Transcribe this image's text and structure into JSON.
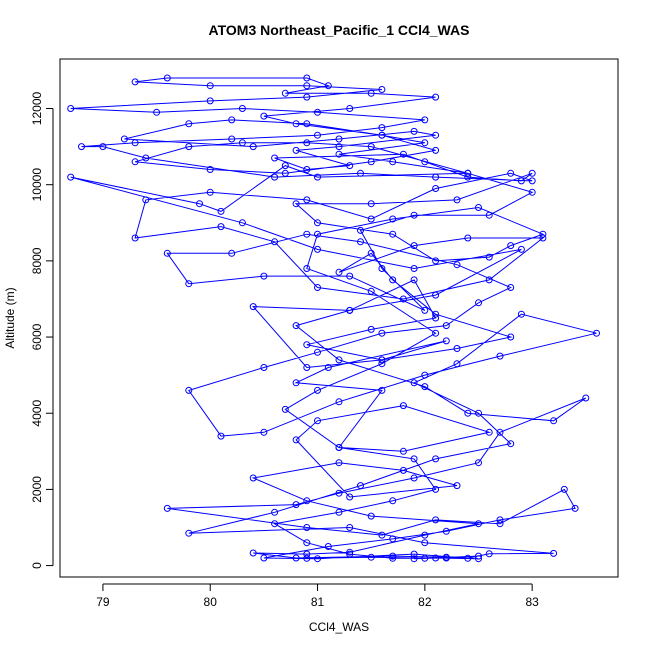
{
  "chart_data": {
    "type": "line",
    "title": "ATOM3 Northeast_Pacific_1 CCl4_WAS",
    "xlabel": "CCl4_WAS",
    "ylabel": "Altitude (m)",
    "xlim": [
      78.6,
      83.8
    ],
    "ylim": [
      -300,
      13300
    ],
    "xticks": [
      79,
      80,
      81,
      82,
      83
    ],
    "yticks": [
      0,
      2000,
      4000,
      6000,
      8000,
      10000,
      12000
    ],
    "grid": false,
    "legend": "none",
    "color": "#0000ff",
    "series": [
      {
        "points": [
          [
            81.9,
            180
          ],
          [
            82.1,
            200
          ],
          [
            82.5,
            180
          ],
          [
            82.2,
            220
          ],
          [
            81.7,
            250
          ],
          [
            80.8,
            200
          ],
          [
            80.4,
            330
          ],
          [
            80.9,
            300
          ],
          [
            81.3,
            350
          ],
          [
            82.0,
            800
          ],
          [
            82.5,
            1100
          ],
          [
            81.5,
            1300
          ],
          [
            80.9,
            1700
          ],
          [
            80.4,
            2300
          ],
          [
            81.2,
            2700
          ],
          [
            81.8,
            2500
          ],
          [
            82.3,
            2100
          ],
          [
            81.3,
            1800
          ],
          [
            80.8,
            3300
          ],
          [
            81.0,
            3800
          ],
          [
            81.8,
            4200
          ],
          [
            82.6,
            3500
          ],
          [
            81.8,
            3000
          ],
          [
            81.2,
            3100
          ],
          [
            81.6,
            4600
          ],
          [
            80.8,
            4800
          ],
          [
            81.1,
            5200
          ],
          [
            82.2,
            5900
          ],
          [
            81.6,
            5400
          ],
          [
            80.9,
            5200
          ],
          [
            80.4,
            6800
          ],
          [
            81.3,
            6700
          ],
          [
            81.9,
            7500
          ],
          [
            82.1,
            6500
          ],
          [
            81.5,
            6200
          ],
          [
            80.9,
            5800
          ],
          [
            81.6,
            5400
          ],
          [
            82.3,
            5700
          ],
          [
            82.8,
            6000
          ],
          [
            82.1,
            6600
          ],
          [
            81.7,
            7500
          ],
          [
            81.5,
            8200
          ],
          [
            81.2,
            7700
          ],
          [
            81.9,
            8400
          ],
          [
            82.4,
            8600
          ],
          [
            83.1,
            8600
          ],
          [
            82.6,
            7500
          ],
          [
            81.8,
            7000
          ],
          [
            81.0,
            7300
          ],
          [
            80.6,
            8500
          ],
          [
            80.1,
            8900
          ],
          [
            79.3,
            8600
          ],
          [
            79.4,
            9600
          ],
          [
            80.0,
            9800
          ],
          [
            80.9,
            9600
          ],
          [
            81.5,
            9100
          ],
          [
            82.1,
            9900
          ],
          [
            82.8,
            10300
          ],
          [
            83.0,
            10100
          ],
          [
            82.1,
            10200
          ],
          [
            81.4,
            10300
          ],
          [
            80.6,
            10200
          ],
          [
            79.4,
            10700
          ],
          [
            79.0,
            11000
          ],
          [
            78.8,
            11000
          ],
          [
            79.3,
            11100
          ],
          [
            80.2,
            11200
          ],
          [
            81.0,
            11300
          ],
          [
            81.6,
            11500
          ],
          [
            82.0,
            11700
          ],
          [
            81.0,
            11900
          ],
          [
            80.3,
            12000
          ],
          [
            79.5,
            11900
          ],
          [
            78.7,
            12000
          ],
          [
            80.0,
            12200
          ],
          [
            80.9,
            12300
          ],
          [
            81.6,
            12500
          ],
          [
            80.9,
            12600
          ],
          [
            80.0,
            12600
          ],
          [
            79.3,
            12700
          ],
          [
            79.6,
            12800
          ],
          [
            80.9,
            12800
          ],
          [
            81.1,
            12600
          ],
          [
            80.7,
            12400
          ],
          [
            81.5,
            12400
          ],
          [
            82.1,
            12300
          ],
          [
            81.3,
            12000
          ],
          [
            80.5,
            11800
          ],
          [
            80.8,
            11600
          ],
          [
            81.6,
            11300
          ],
          [
            82.0,
            11100
          ],
          [
            81.2,
            10800
          ],
          [
            81.7,
            10600
          ],
          [
            82.4,
            10300
          ],
          [
            81.0,
            10200
          ],
          [
            80.7,
            10500
          ],
          [
            80.1,
            9300
          ],
          [
            79.9,
            9500
          ],
          [
            78.7,
            10200
          ],
          [
            80.3,
            9000
          ],
          [
            81.0,
            8300
          ],
          [
            81.9,
            7800
          ],
          [
            82.9,
            8300
          ],
          [
            82.1,
            7100
          ],
          [
            81.3,
            6700
          ],
          [
            80.8,
            6300
          ],
          [
            81.2,
            5400
          ],
          [
            82.0,
            4700
          ],
          [
            82.4,
            4000
          ],
          [
            83.2,
            3800
          ],
          [
            83.5,
            4400
          ],
          [
            82.7,
            3500
          ],
          [
            82.5,
            2700
          ],
          [
            81.9,
            2300
          ],
          [
            81.2,
            1900
          ],
          [
            80.8,
            1600
          ],
          [
            79.6,
            1500
          ],
          [
            80.9,
            1000
          ],
          [
            81.6,
            800
          ],
          [
            82.1,
            1200
          ],
          [
            82.7,
            1100
          ],
          [
            83.3,
            2000
          ],
          [
            83.4,
            1500
          ],
          [
            82.7,
            1200
          ],
          [
            82.2,
            900
          ],
          [
            81.7,
            700
          ],
          [
            81.1,
            500
          ],
          [
            80.5,
            200
          ],
          [
            81.0,
            180
          ],
          [
            81.9,
            300
          ],
          [
            82.4,
            190
          ],
          [
            82.6,
            310
          ],
          [
            83.2,
            320
          ],
          [
            82.0,
            600
          ],
          [
            81.3,
            1000
          ],
          [
            79.8,
            850
          ],
          [
            80.6,
            1400
          ],
          [
            81.4,
            2100
          ],
          [
            82.1,
            2800
          ],
          [
            82.8,
            3200
          ],
          [
            82.5,
            4000
          ],
          [
            81.9,
            4800
          ],
          [
            82.3,
            5300
          ],
          [
            82.9,
            6600
          ],
          [
            83.6,
            6100
          ],
          [
            82.7,
            5500
          ],
          [
            82.0,
            5000
          ],
          [
            81.2,
            4300
          ],
          [
            80.5,
            3500
          ],
          [
            80.1,
            3400
          ],
          [
            79.8,
            4600
          ],
          [
            80.5,
            5200
          ],
          [
            81.0,
            5600
          ],
          [
            81.6,
            6100
          ],
          [
            82.2,
            6300
          ],
          [
            82.5,
            6900
          ],
          [
            82.8,
            7300
          ],
          [
            82.3,
            7900
          ],
          [
            81.4,
            8500
          ],
          [
            80.9,
            8700
          ],
          [
            80.2,
            8200
          ],
          [
            79.6,
            8200
          ],
          [
            79.8,
            7400
          ],
          [
            80.5,
            7600
          ],
          [
            81.3,
            7600
          ],
          [
            82.0,
            6700
          ],
          [
            81.6,
            7800
          ],
          [
            81.4,
            8800
          ],
          [
            81.9,
            9200
          ],
          [
            82.6,
            9200
          ],
          [
            83.0,
            9800
          ],
          [
            82.4,
            10300
          ],
          [
            81.5,
            11000
          ],
          [
            80.9,
            11100
          ],
          [
            80.3,
            11100
          ],
          [
            79.8,
            11000
          ],
          [
            79.3,
            10600
          ],
          [
            80.0,
            10400
          ],
          [
            80.7,
            10300
          ],
          [
            81.5,
            10600
          ],
          [
            82.1,
            10900
          ],
          [
            81.6,
            11300
          ],
          [
            80.9,
            11600
          ],
          [
            80.2,
            11700
          ],
          [
            79.8,
            11600
          ],
          [
            79.2,
            11200
          ],
          [
            80.4,
            11000
          ],
          [
            81.2,
            11200
          ],
          [
            81.9,
            11400
          ],
          [
            82.1,
            11300
          ],
          [
            81.2,
            11000
          ],
          [
            80.8,
            10900
          ],
          [
            81.3,
            10500
          ],
          [
            80.9,
            10400
          ],
          [
            80.6,
            10700
          ],
          [
            81.8,
            10800
          ],
          [
            82.0,
            10600
          ],
          [
            82.4,
            10200
          ],
          [
            82.9,
            10100
          ],
          [
            83.0,
            10300
          ],
          [
            82.3,
            9600
          ],
          [
            81.5,
            9500
          ],
          [
            80.8,
            9500
          ],
          [
            81.0,
            9000
          ],
          [
            81.7,
            8700
          ],
          [
            82.1,
            8000
          ],
          [
            82.6,
            8100
          ],
          [
            82.8,
            8400
          ],
          [
            83.1,
            8700
          ],
          [
            82.5,
            9400
          ],
          [
            81.7,
            9100
          ],
          [
            81.0,
            8700
          ],
          [
            80.9,
            7800
          ],
          [
            81.5,
            7200
          ],
          [
            82.1,
            6100
          ],
          [
            81.6,
            5300
          ],
          [
            81.0,
            4600
          ],
          [
            80.7,
            4100
          ],
          [
            81.2,
            3100
          ],
          [
            81.9,
            2800
          ],
          [
            82.1,
            2000
          ],
          [
            81.7,
            1700
          ],
          [
            81.2,
            1400
          ],
          [
            80.6,
            1100
          ],
          [
            80.9,
            600
          ],
          [
            81.3,
            300
          ],
          [
            81.7,
            190
          ],
          [
            82.2,
            200
          ],
          [
            82.5,
            250
          ],
          [
            82.0,
            190
          ],
          [
            81.5,
            220
          ],
          [
            80.9,
            190
          ]
        ]
      }
    ]
  }
}
